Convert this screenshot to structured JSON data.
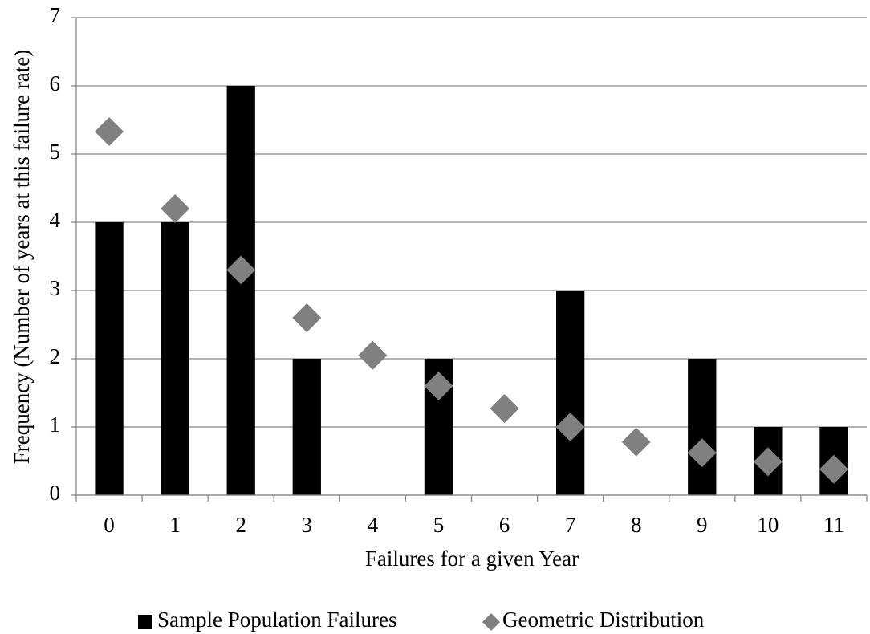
{
  "chart_data": {
    "type": "bar",
    "x_label": "Failures for a given Year",
    "y_label": "Frequency (Number of years at this failure rate)",
    "categories": [
      "0",
      "1",
      "2",
      "3",
      "4",
      "5",
      "6",
      "7",
      "8",
      "9",
      "10",
      "11"
    ],
    "series": [
      {
        "name": "Sample Population Failures",
        "type": "bar",
        "color": "#000000",
        "values": [
          4,
          4,
          6,
          2,
          0,
          2,
          0,
          3,
          0,
          2,
          1,
          1
        ]
      },
      {
        "name": "Geometric Distribution",
        "type": "marker",
        "color": "#808080",
        "values": [
          5.33,
          4.2,
          3.3,
          2.6,
          2.05,
          1.6,
          1.27,
          1.0,
          0.78,
          0.62,
          0.49,
          0.38
        ]
      }
    ],
    "ylim": [
      0,
      7
    ],
    "yticks": [
      0,
      1,
      2,
      3,
      4,
      5,
      6,
      7
    ],
    "grid": true,
    "legend": "bottom"
  }
}
